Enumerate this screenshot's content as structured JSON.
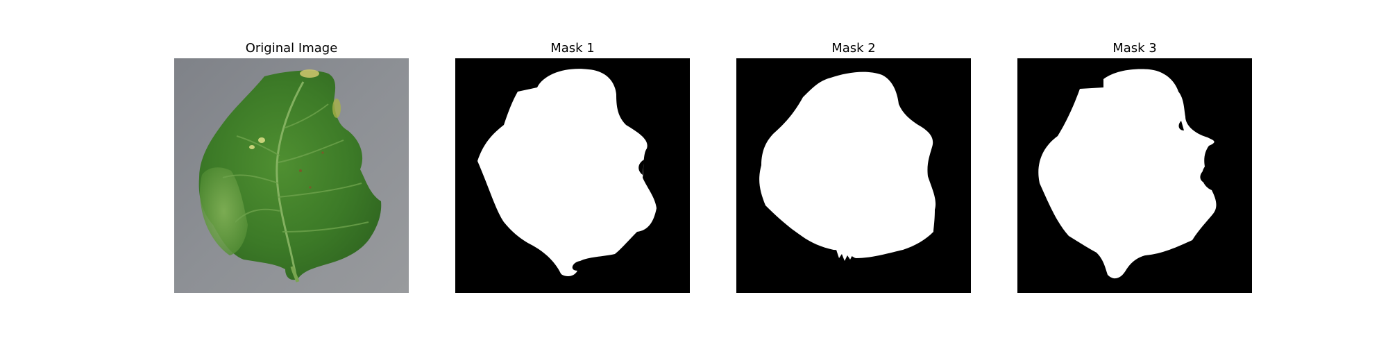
{
  "panels": [
    {
      "title": "Original Image"
    },
    {
      "title": "Mask 1"
    },
    {
      "title": "Mask 2"
    },
    {
      "title": "Mask 3"
    }
  ],
  "colors": {
    "background_gray": "#8a8d92",
    "leaf_green": "#3f7f2b",
    "mask_background": "#000000",
    "mask_foreground": "#ffffff"
  }
}
